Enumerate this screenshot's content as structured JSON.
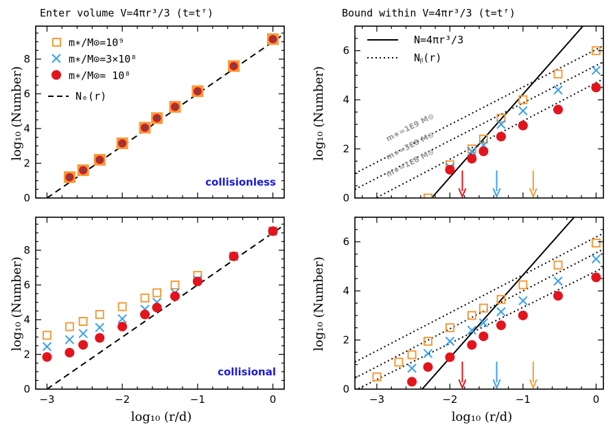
{
  "colors": {
    "orange": "#f39c3a",
    "blue": "#3aa0ec",
    "red": "#e3141c",
    "text_blue": "#1a1ad8",
    "gray": "#9a9a9a"
  },
  "shared": {
    "xlabel": "log₁₀ (r/d)",
    "ylabel": "log₁₀ (Number)"
  },
  "chart_data": [
    {
      "id": "tl",
      "type": "scatter",
      "title": "Enter volume V=4πr³/3 (t=tᶠ)",
      "corner_label": "collisionless",
      "xlim": [
        -3.15,
        0.15
      ],
      "ylim": [
        0,
        9.9
      ],
      "xticks": [
        -3,
        -2,
        -1,
        0
      ],
      "yticks": [
        0,
        2,
        4,
        6,
        8
      ],
      "show_xticklabels": false,
      "legend": [
        {
          "marker": "square",
          "color": "orange",
          "text": "m∗/M⊙=10⁹"
        },
        {
          "marker": "cross",
          "color": "blue",
          "text": "m∗/M⊙=3×10⁸"
        },
        {
          "marker": "circle",
          "color": "red",
          "text": "m∗/M⊙= 10⁸"
        },
        {
          "marker": "dashed",
          "color": "black",
          "text": "Nₑ(r)"
        }
      ],
      "lines": [
        {
          "style": "dashed",
          "points": [
            [
              -3.0,
              0.0
            ],
            [
              0.15,
              9.45
            ]
          ]
        }
      ],
      "series": [
        {
          "name": "m∗/M⊙=10⁹",
          "marker": "square",
          "color": "orange",
          "x": [
            -2.7,
            -2.52,
            -2.3,
            -2.0,
            -1.7,
            -1.54,
            -1.3,
            -1.0,
            -0.52,
            0.0
          ],
          "y": [
            1.2,
            1.6,
            2.2,
            3.15,
            4.05,
            4.6,
            5.25,
            6.15,
            7.6,
            9.15
          ]
        },
        {
          "name": "m∗/M⊙=3×10⁸",
          "marker": "cross",
          "color": "blue",
          "x": [
            -2.7,
            -2.52,
            -2.3,
            -2.0,
            -1.7,
            -1.54,
            -1.3,
            -1.0,
            -0.52,
            0.0
          ],
          "y": [
            1.2,
            1.6,
            2.2,
            3.15,
            4.05,
            4.6,
            5.25,
            6.15,
            7.6,
            9.15
          ]
        },
        {
          "name": "m∗/M⊙= 10⁸",
          "marker": "circle",
          "color": "red",
          "x": [
            -2.7,
            -2.52,
            -2.3,
            -2.0,
            -1.7,
            -1.54,
            -1.3,
            -1.0,
            -0.52,
            0.0
          ],
          "y": [
            1.2,
            1.6,
            2.2,
            3.15,
            4.05,
            4.6,
            5.25,
            6.15,
            7.6,
            9.15
          ]
        }
      ]
    },
    {
      "id": "tr",
      "type": "scatter",
      "title": "Bound within V=4πr³/3 (t=tᶠ)",
      "xlim": [
        -3.3,
        0.1
      ],
      "ylim": [
        0,
        7.0
      ],
      "xticks": [
        -3,
        -2,
        -1,
        0
      ],
      "yticks": [
        0,
        2,
        4,
        6
      ],
      "show_xticklabels": false,
      "legend": [
        {
          "marker": "solid",
          "color": "black",
          "text": "N=4πr³/3"
        },
        {
          "marker": "dotted",
          "color": "black",
          "text": "Nᵦ(r)"
        }
      ],
      "lines": [
        {
          "style": "solid",
          "points": [
            [
              -2.25,
              0.0
            ],
            [
              -0.18,
              7.0
            ]
          ]
        },
        {
          "style": "dotted",
          "points": [
            [
              -3.3,
              1.0
            ],
            [
              0.1,
              6.2
            ]
          ]
        },
        {
          "style": "dotted",
          "points": [
            [
              -3.3,
              0.35
            ],
            [
              0.1,
              5.55
            ]
          ]
        },
        {
          "style": "dotted",
          "points": [
            [
              -3.3,
              -0.45
            ],
            [
              0.1,
              4.85
            ]
          ]
        }
      ],
      "mass_labels": [
        {
          "text": "m∗=1E9 M⊙",
          "x": -2.85,
          "y": 2.3
        },
        {
          "text": "m∗=3E8 M⊙",
          "x": -2.85,
          "y": 1.55
        },
        {
          "text": "m∗=1E8 M⊙",
          "x": -2.85,
          "y": 0.85
        }
      ],
      "arrows": [
        {
          "color": "red",
          "x": -1.83
        },
        {
          "color": "blue",
          "x": -1.36
        },
        {
          "color": "orange",
          "x": -0.86
        }
      ],
      "series": [
        {
          "name": "m∗/M⊙=10⁹",
          "marker": "square",
          "color": "orange",
          "x": [
            -2.3,
            -2.0,
            -1.7,
            -1.54,
            -1.3,
            -1.0,
            -0.52,
            0.0
          ],
          "y": [
            0.0,
            1.35,
            2.0,
            2.4,
            3.25,
            4.0,
            5.05,
            6.0
          ]
        },
        {
          "name": "m∗/M⊙=3×10⁸",
          "marker": "cross",
          "color": "blue",
          "x": [
            -2.0,
            -1.7,
            -1.54,
            -1.3,
            -1.0,
            -0.52,
            0.0
          ],
          "y": [
            1.25,
            1.9,
            2.15,
            3.0,
            3.55,
            4.4,
            5.2
          ]
        },
        {
          "name": "m∗/M⊙= 10⁸",
          "marker": "circle",
          "color": "red",
          "x": [
            -2.0,
            -1.7,
            -1.54,
            -1.3,
            -1.0,
            -0.52,
            0.0
          ],
          "y": [
            1.15,
            1.6,
            1.9,
            2.5,
            2.95,
            3.6,
            4.5
          ]
        }
      ]
    },
    {
      "id": "bl",
      "type": "scatter",
      "corner_label": "collisional",
      "xlim": [
        -3.15,
        0.15
      ],
      "ylim": [
        0,
        9.9
      ],
      "xticks": [
        -3,
        -2,
        -1,
        0
      ],
      "yticks": [
        0,
        2,
        4,
        6,
        8
      ],
      "show_xticklabels": true,
      "xticklabels": [
        "−3",
        "−2",
        "−1",
        "0"
      ],
      "lines": [
        {
          "style": "dashed",
          "points": [
            [
              -3.0,
              0.0
            ],
            [
              0.15,
              9.45
            ]
          ]
        }
      ],
      "series": [
        {
          "name": "m∗/M⊙=10⁹",
          "marker": "square",
          "color": "orange",
          "x": [
            -3.0,
            -2.7,
            -2.52,
            -2.3,
            -2.0,
            -1.7,
            -1.54,
            -1.3,
            -1.0,
            -0.52,
            0.0
          ],
          "y": [
            3.1,
            3.6,
            3.9,
            4.3,
            4.75,
            5.25,
            5.55,
            6.0,
            6.55,
            7.65,
            9.1
          ]
        },
        {
          "name": "m∗/M⊙=3×10⁸",
          "marker": "cross",
          "color": "blue",
          "x": [
            -3.0,
            -2.7,
            -2.52,
            -2.3,
            -2.0,
            -1.7,
            -1.54,
            -1.3,
            -1.0,
            -0.52,
            0.0
          ],
          "y": [
            2.45,
            2.85,
            3.2,
            3.55,
            4.05,
            4.6,
            5.0,
            5.55,
            6.3,
            7.65,
            9.1
          ]
        },
        {
          "name": "m∗/M⊙= 10⁸",
          "marker": "circle",
          "color": "red",
          "x": [
            -3.0,
            -2.7,
            -2.52,
            -2.3,
            -2.0,
            -1.7,
            -1.54,
            -1.3,
            -1.0,
            -0.52,
            0.0
          ],
          "y": [
            1.85,
            2.1,
            2.55,
            2.95,
            3.6,
            4.3,
            4.7,
            5.35,
            6.2,
            7.65,
            9.1
          ]
        }
      ]
    },
    {
      "id": "br",
      "type": "scatter",
      "xlim": [
        -3.3,
        0.1
      ],
      "ylim": [
        0,
        7.0
      ],
      "xticks": [
        -3,
        -2,
        -1,
        0
      ],
      "yticks": [
        0,
        2,
        4,
        6
      ],
      "show_xticklabels": true,
      "xticklabels": [
        "−3",
        "−2",
        "−1",
        "0"
      ],
      "lines": [
        {
          "style": "solid",
          "points": [
            [
              -2.38,
              0.0
            ],
            [
              -0.3,
              7.0
            ]
          ]
        },
        {
          "style": "dotted",
          "points": [
            [
              -3.3,
              1.1
            ],
            [
              0.1,
              6.35
            ]
          ]
        },
        {
          "style": "dotted",
          "points": [
            [
              -3.3,
              0.45
            ],
            [
              0.1,
              5.7
            ]
          ]
        },
        {
          "style": "dotted",
          "points": [
            [
              -3.3,
              -0.05
            ],
            [
              0.1,
              4.95
            ]
          ]
        }
      ],
      "arrows": [
        {
          "color": "red",
          "x": -1.83
        },
        {
          "color": "blue",
          "x": -1.36
        },
        {
          "color": "orange",
          "x": -0.86
        }
      ],
      "series": [
        {
          "name": "m∗/M⊙=10⁹",
          "marker": "square",
          "color": "orange",
          "x": [
            -3.0,
            -2.7,
            -2.52,
            -2.3,
            -2.0,
            -1.7,
            -1.54,
            -1.3,
            -1.0,
            -0.52,
            0.0
          ],
          "y": [
            0.5,
            1.1,
            1.4,
            1.95,
            2.5,
            3.0,
            3.3,
            3.65,
            4.25,
            5.05,
            5.95
          ]
        },
        {
          "name": "m∗/M⊙=3×10⁸",
          "marker": "cross",
          "color": "blue",
          "x": [
            -2.52,
            -2.3,
            -2.0,
            -1.7,
            -1.54,
            -1.3,
            -1.0,
            -0.52,
            0.0
          ],
          "y": [
            0.85,
            1.45,
            1.95,
            2.4,
            2.7,
            3.15,
            3.6,
            4.4,
            5.3
          ]
        },
        {
          "name": "m∗/M⊙= 10⁸",
          "marker": "circle",
          "color": "red",
          "x": [
            -2.52,
            -2.3,
            -2.0,
            -1.7,
            -1.54,
            -1.3,
            -1.0,
            -0.52,
            0.0
          ],
          "y": [
            0.3,
            0.9,
            1.3,
            1.8,
            2.15,
            2.6,
            3.0,
            3.8,
            4.55
          ]
        }
      ]
    }
  ]
}
